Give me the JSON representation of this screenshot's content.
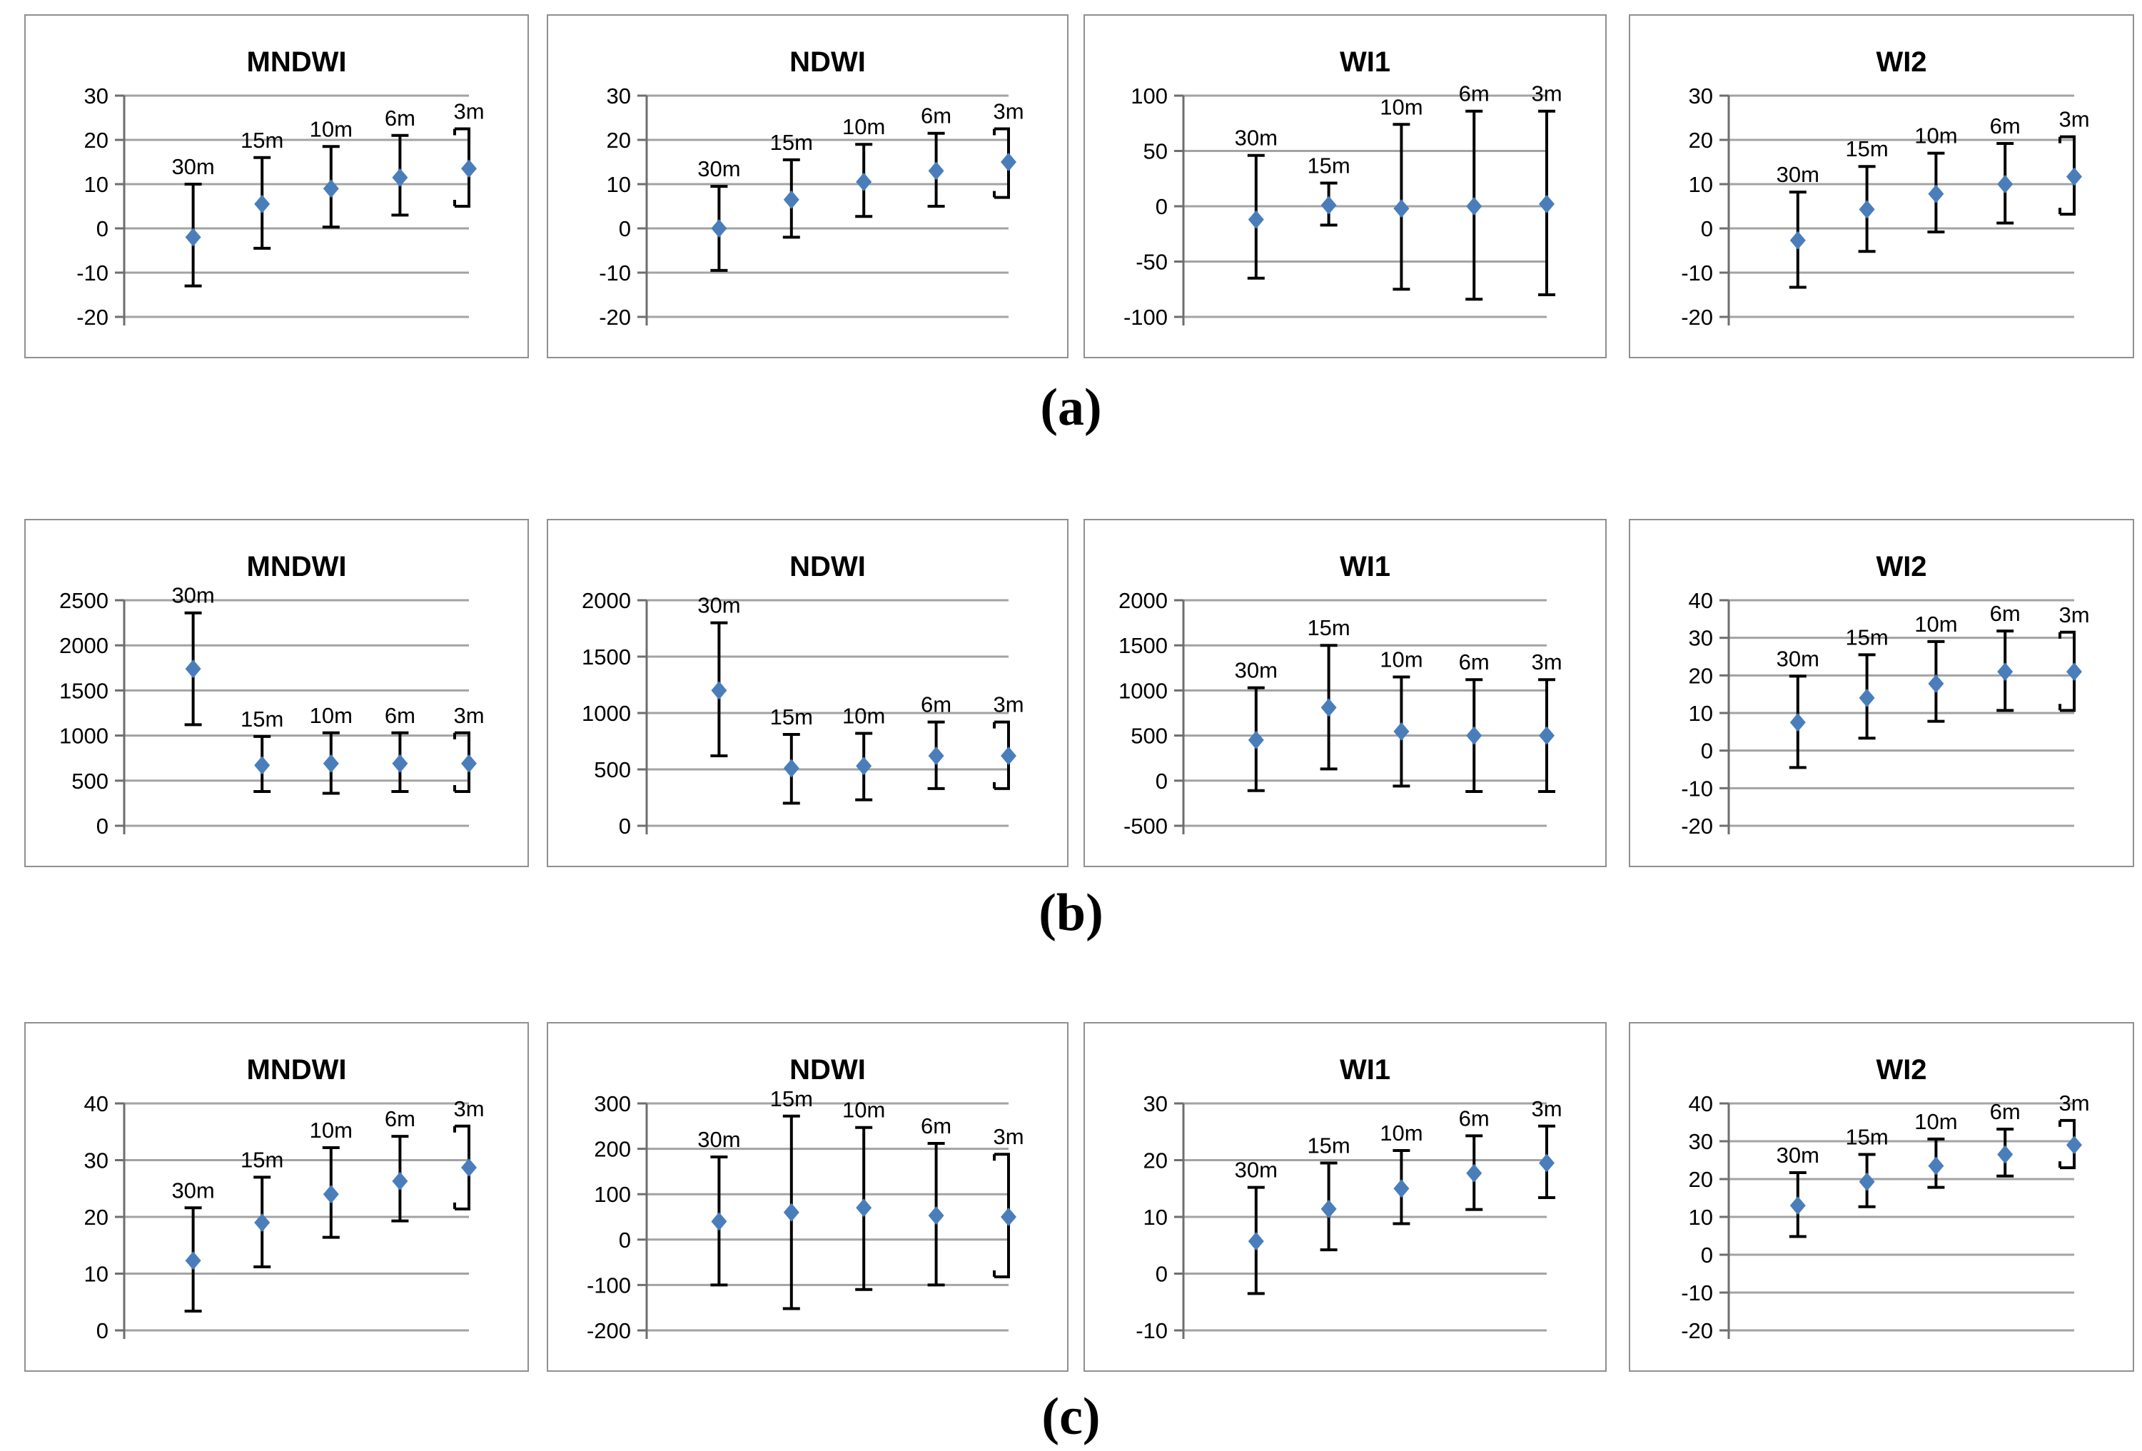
{
  "style": {
    "marker_color": "#4a7ebb",
    "grid_color": "#a3a3a3",
    "axis_color": "#6e6e6e",
    "error_bar_color": "#000000",
    "panel_border_color": "#909090",
    "background": "#ffffff"
  },
  "rows": [
    {
      "label": "(a)"
    },
    {
      "label": "(b)"
    },
    {
      "label": "(c)"
    }
  ],
  "x_categories": [
    "30m",
    "15m",
    "10m",
    "6m",
    "3m"
  ],
  "chart_data": [
    {
      "row": "a",
      "type": "scatter",
      "title": "MNDWI",
      "categories": [
        "30m",
        "15m",
        "10m",
        "6m",
        "3m"
      ],
      "values": [
        -2,
        5.5,
        9,
        11.5,
        13.5
      ],
      "err_low": [
        -13,
        -4.5,
        0.3,
        3,
        5
      ],
      "err_high": [
        10,
        16,
        18.5,
        21,
        22.5
      ],
      "ylim": [
        -20,
        30
      ],
      "yticks": [
        30,
        20,
        10,
        0,
        -10,
        -20
      ],
      "grid": true,
      "legend": "none",
      "bracket_last": true
    },
    {
      "row": "a",
      "type": "scatter",
      "title": "NDWI",
      "categories": [
        "30m",
        "15m",
        "10m",
        "6m",
        "3m"
      ],
      "values": [
        0,
        6.5,
        10.5,
        13,
        15
      ],
      "err_low": [
        -9.5,
        -2,
        2.7,
        5,
        7
      ],
      "err_high": [
        9.5,
        15.5,
        19,
        21.5,
        22.5
      ],
      "ylim": [
        -20,
        30
      ],
      "yticks": [
        30,
        20,
        10,
        0,
        -10,
        -20
      ],
      "grid": true,
      "legend": "none",
      "bracket_last": true
    },
    {
      "row": "a",
      "type": "scatter",
      "title": "WI1",
      "categories": [
        "30m",
        "15m",
        "10m",
        "6m",
        "3m"
      ],
      "values": [
        -12,
        1,
        -2,
        0,
        2
      ],
      "err_low": [
        -65,
        -17,
        -75,
        -84,
        -80
      ],
      "err_high": [
        46,
        21,
        74,
        86,
        86
      ],
      "ylim": [
        -100,
        100
      ],
      "yticks": [
        100,
        50,
        0,
        -50,
        -100
      ],
      "grid": true,
      "legend": "none",
      "bracket_last": false
    },
    {
      "row": "a",
      "type": "scatter",
      "title": "WI2",
      "categories": [
        "30m",
        "15m",
        "10m",
        "6m",
        "3m"
      ],
      "values": [
        -2.7,
        4.3,
        7.8,
        10,
        11.7
      ],
      "err_low": [
        -13.3,
        -5.2,
        -0.8,
        1.2,
        3.2
      ],
      "err_high": [
        8.2,
        14,
        17,
        19.2,
        20.7
      ],
      "ylim": [
        -20,
        30
      ],
      "yticks": [
        30,
        20,
        10,
        0,
        -10,
        -20
      ],
      "grid": true,
      "legend": "none",
      "bracket_last": true
    },
    {
      "row": "b",
      "type": "scatter",
      "title": "MNDWI",
      "categories": [
        "30m",
        "15m",
        "10m",
        "6m",
        "3m"
      ],
      "values": [
        1740,
        670,
        690,
        690,
        690
      ],
      "err_low": [
        1120,
        380,
        360,
        380,
        380
      ],
      "err_high": [
        2360,
        990,
        1030,
        1030,
        1030
      ],
      "ylim": [
        0,
        2500
      ],
      "yticks": [
        2500,
        2000,
        1500,
        1000,
        500,
        0
      ],
      "grid": true,
      "legend": "none",
      "bracket_last": true
    },
    {
      "row": "b",
      "type": "scatter",
      "title": "NDWI",
      "categories": [
        "30m",
        "15m",
        "10m",
        "6m",
        "3m"
      ],
      "values": [
        1200,
        510,
        530,
        620,
        620
      ],
      "err_low": [
        620,
        200,
        230,
        330,
        330
      ],
      "err_high": [
        1800,
        810,
        820,
        920,
        920
      ],
      "ylim": [
        0,
        2000
      ],
      "yticks": [
        2000,
        1500,
        1000,
        500,
        0
      ],
      "grid": true,
      "legend": "none",
      "bracket_last": true
    },
    {
      "row": "b",
      "type": "scatter",
      "title": "WI1",
      "categories": [
        "30m",
        "15m",
        "10m",
        "6m",
        "3m"
      ],
      "values": [
        450,
        810,
        545,
        500,
        500
      ],
      "err_low": [
        -110,
        130,
        -60,
        -120,
        -120
      ],
      "err_high": [
        1030,
        1500,
        1150,
        1120,
        1120
      ],
      "ylim": [
        -500,
        2000
      ],
      "yticks": [
        2000,
        1500,
        1000,
        500,
        0,
        -500
      ],
      "grid": true,
      "legend": "none",
      "bracket_last": false
    },
    {
      "row": "b",
      "type": "scatter",
      "title": "WI2",
      "categories": [
        "30m",
        "15m",
        "10m",
        "6m",
        "3m"
      ],
      "values": [
        7.5,
        14,
        17.8,
        21,
        21
      ],
      "err_low": [
        -4.5,
        3.3,
        7.8,
        10.7,
        10.7
      ],
      "err_high": [
        19.8,
        25.5,
        29,
        31.8,
        31.5
      ],
      "ylim": [
        -20,
        40
      ],
      "yticks": [
        40,
        30,
        20,
        10,
        0,
        -10,
        -20
      ],
      "grid": true,
      "legend": "none",
      "bracket_last": true
    },
    {
      "row": "c",
      "type": "scatter",
      "title": "MNDWI",
      "categories": [
        "30m",
        "15m",
        "10m",
        "6m",
        "3m"
      ],
      "values": [
        12.3,
        19,
        24,
        26.3,
        28.7
      ],
      "err_low": [
        3.4,
        11.2,
        16.4,
        19.3,
        21.4
      ],
      "err_high": [
        21.6,
        27,
        32.2,
        34.2,
        36
      ],
      "ylim": [
        0,
        40
      ],
      "yticks": [
        40,
        30,
        20,
        10,
        0
      ],
      "grid": true,
      "legend": "none",
      "bracket_last": true
    },
    {
      "row": "c",
      "type": "scatter",
      "title": "NDWI",
      "categories": [
        "30m",
        "15m",
        "10m",
        "6m",
        "3m"
      ],
      "values": [
        40,
        60,
        70,
        53,
        50
      ],
      "err_low": [
        -100,
        -152,
        -110,
        -100,
        -82
      ],
      "err_high": [
        182,
        272,
        247,
        212,
        188
      ],
      "ylim": [
        -200,
        300
      ],
      "yticks": [
        300,
        200,
        100,
        0,
        -100,
        -200
      ],
      "grid": true,
      "legend": "none",
      "bracket_last": true
    },
    {
      "row": "c",
      "type": "scatter",
      "title": "WI1",
      "categories": [
        "30m",
        "15m",
        "10m",
        "6m",
        "3m"
      ],
      "values": [
        5.7,
        11.4,
        15,
        17.7,
        19.5
      ],
      "err_low": [
        -3.5,
        4.2,
        8.8,
        11.3,
        13.4
      ],
      "err_high": [
        15.2,
        19.5,
        21.7,
        24.3,
        26
      ],
      "ylim": [
        -10,
        30
      ],
      "yticks": [
        30,
        20,
        10,
        0,
        -10
      ],
      "grid": true,
      "legend": "none",
      "bracket_last": false
    },
    {
      "row": "c",
      "type": "scatter",
      "title": "WI2",
      "categories": [
        "30m",
        "15m",
        "10m",
        "6m",
        "3m"
      ],
      "values": [
        13,
        19.3,
        23.5,
        26.5,
        29
      ],
      "err_low": [
        4.8,
        12.7,
        17.8,
        20.8,
        23
      ],
      "err_high": [
        21.7,
        26.5,
        30.6,
        33.2,
        35.5
      ],
      "ylim": [
        -20,
        40
      ],
      "yticks": [
        40,
        30,
        20,
        10,
        0,
        -10,
        -20
      ],
      "grid": true,
      "legend": "none",
      "bracket_last": true
    }
  ],
  "layout_note": "3 rows labelled (a),(b),(c); each row has 4 error-bar scatter charts: MNDWI, NDWI, WI1, WI2"
}
